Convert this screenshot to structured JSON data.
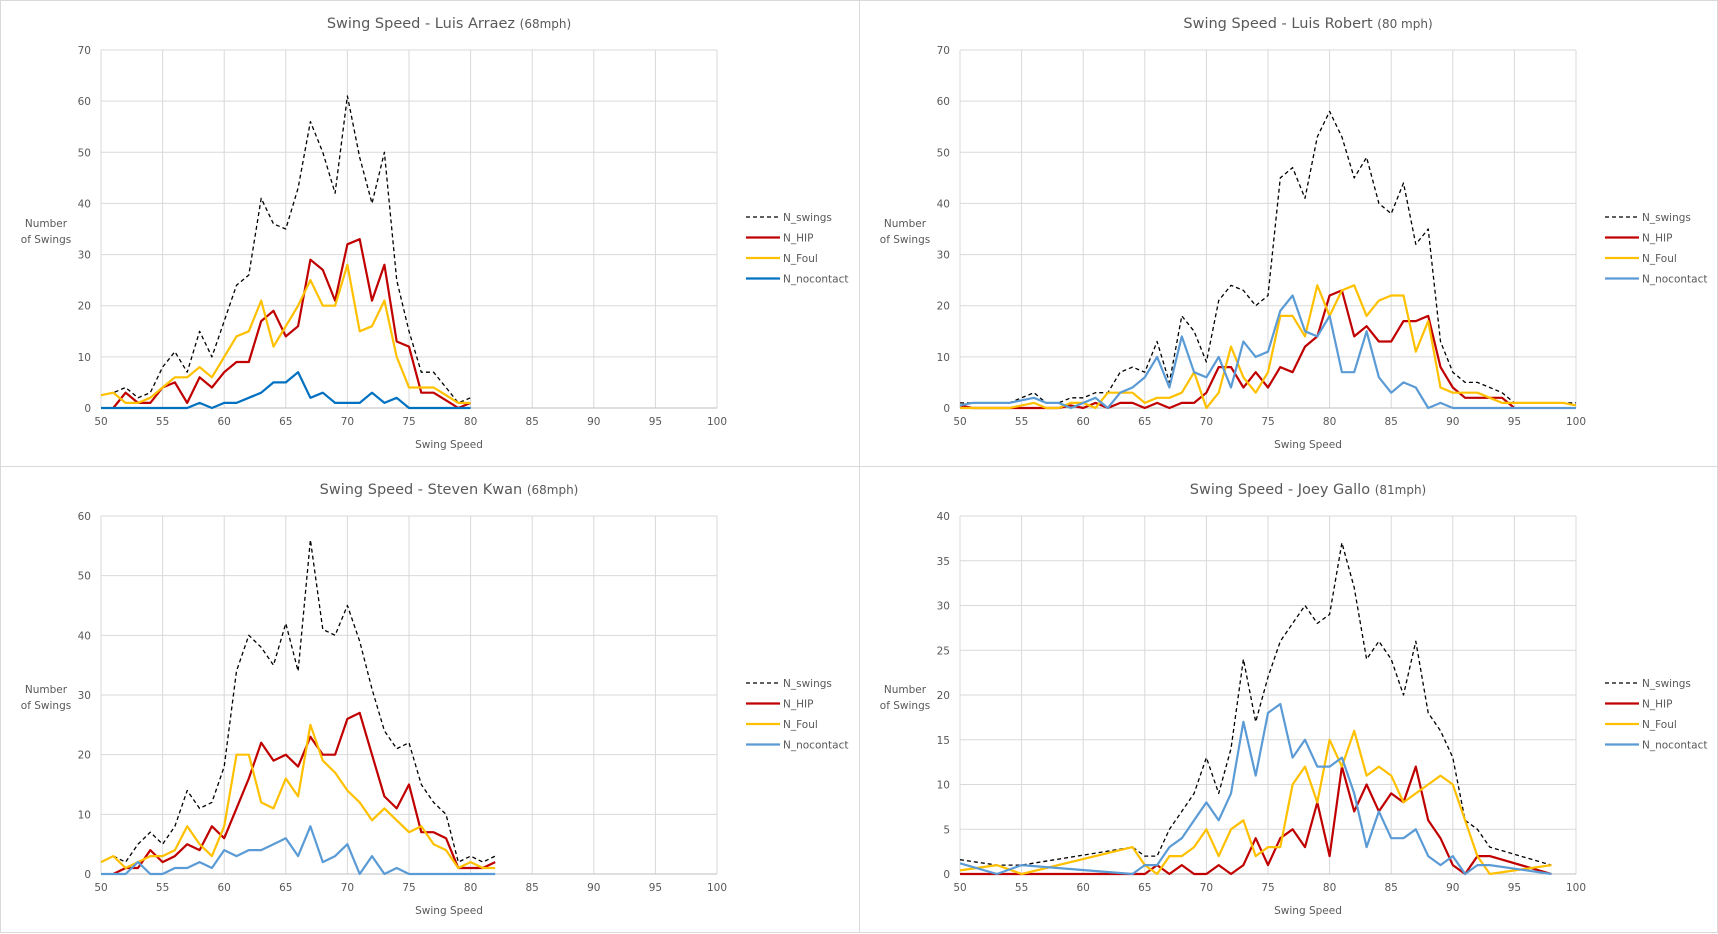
{
  "chart_data": [
    {
      "type": "line",
      "title": "Swing Speed - Luis Arraez",
      "title_suffix": "(68mph)",
      "xlabel": "Swing Speed",
      "ylabel": [
        "Number",
        "of Swings"
      ],
      "xlim": [
        50,
        100
      ],
      "ylim": [
        0,
        70
      ],
      "xticks": [
        50,
        55,
        60,
        65,
        70,
        75,
        80,
        85,
        90,
        95,
        100
      ],
      "yticks": [
        0,
        10,
        20,
        30,
        40,
        50,
        60,
        70
      ],
      "grid": true,
      "legend_position": "right",
      "x": [
        50,
        51,
        52,
        53,
        54,
        55,
        56,
        57,
        58,
        59,
        60,
        61,
        62,
        63,
        64,
        65,
        66,
        67,
        68,
        69,
        70,
        71,
        72,
        73,
        74,
        75,
        76,
        77,
        78,
        79,
        80
      ],
      "series": [
        {
          "name": "N_swings",
          "color": "#000000",
          "dashed": true,
          "values": [
            2.5,
            3,
            4,
            2,
            3,
            8,
            11,
            7,
            15,
            10,
            17,
            24,
            26,
            41,
            36,
            35,
            43,
            56,
            50,
            42,
            61,
            49,
            40,
            50,
            25,
            15,
            7,
            7,
            4,
            1,
            2
          ]
        },
        {
          "name": "N_HIP",
          "color": "#C00000",
          "dashed": false,
          "values": [
            null,
            0,
            3,
            1,
            1,
            4,
            5,
            1,
            6,
            4,
            7,
            9,
            9,
            17,
            19,
            14,
            16,
            29,
            27,
            21,
            32,
            33,
            21,
            28,
            13,
            12,
            3,
            3,
            1.5,
            0,
            1
          ]
        },
        {
          "name": "N_Foul",
          "color": "#FFC000",
          "dashed": false,
          "values": [
            2.5,
            3,
            1,
            1,
            2,
            4,
            6,
            6,
            8,
            6,
            10,
            14,
            15,
            21,
            12,
            16,
            20,
            25,
            20,
            20,
            28,
            15,
            16,
            21,
            10,
            4,
            4,
            4,
            2.5,
            1,
            1
          ]
        },
        {
          "name": "N_nocontact",
          "color": "#0070C0",
          "dashed": false,
          "values": [
            0,
            0,
            0,
            0,
            0,
            0,
            0,
            0,
            1,
            0,
            1,
            1,
            2,
            3,
            5,
            5,
            7,
            2,
            3,
            1,
            1,
            1,
            3,
            1,
            2,
            0,
            0,
            0,
            0,
            0,
            0
          ]
        }
      ]
    },
    {
      "type": "line",
      "title": "Swing Speed - Luis Robert",
      "title_suffix": "(80 mph)",
      "xlabel": "Swing Speed",
      "ylabel": [
        "Number",
        "of Swings"
      ],
      "xlim": [
        50,
        100
      ],
      "ylim": [
        0,
        70
      ],
      "xticks": [
        50,
        55,
        60,
        65,
        70,
        75,
        80,
        85,
        90,
        95,
        100
      ],
      "yticks": [
        0,
        10,
        20,
        30,
        40,
        50,
        60,
        70
      ],
      "grid": true,
      "legend_position": "right",
      "x": [
        50,
        51,
        52,
        53,
        54,
        55,
        56,
        57,
        58,
        59,
        60,
        61,
        62,
        63,
        64,
        65,
        66,
        67,
        68,
        69,
        70,
        71,
        72,
        73,
        74,
        75,
        76,
        77,
        78,
        79,
        80,
        81,
        82,
        83,
        84,
        85,
        86,
        87,
        88,
        89,
        90,
        91,
        92,
        93,
        94,
        95,
        96,
        97,
        98,
        99,
        100
      ],
      "series": [
        {
          "name": "N_swings",
          "color": "#000000",
          "dashed": true,
          "values": [
            1,
            1,
            1,
            1,
            1,
            2,
            3,
            1,
            1,
            2,
            2,
            3,
            3,
            7,
            8,
            7,
            13,
            5,
            18,
            15,
            9,
            21,
            24,
            23,
            20,
            22,
            45,
            47,
            41,
            53,
            58,
            53,
            45,
            49,
            40,
            38,
            44,
            32,
            35,
            13,
            7,
            5,
            5,
            4,
            3,
            1,
            1,
            1,
            1,
            1,
            1
          ]
        },
        {
          "name": "N_HIP",
          "color": "#C00000",
          "dashed": false,
          "values": [
            0.5,
            0,
            0,
            0,
            0,
            0,
            0,
            0,
            0,
            0.5,
            0,
            1,
            0,
            1,
            1,
            0,
            1,
            0,
            1,
            1,
            3,
            8,
            8,
            4,
            7,
            4,
            8,
            7,
            12,
            14,
            22,
            23,
            14,
            16,
            13,
            13,
            17,
            17,
            18,
            8,
            4,
            2,
            2,
            2,
            2,
            0,
            null,
            null,
            null,
            null,
            0.3
          ]
        },
        {
          "name": "N_Foul",
          "color": "#FFC000",
          "dashed": false,
          "values": [
            0,
            0,
            0,
            0,
            0,
            0.5,
            1,
            0,
            0,
            1,
            1,
            0,
            3,
            3,
            3,
            1,
            2,
            2,
            3,
            7,
            0,
            3,
            12,
            6,
            3,
            7,
            18,
            18,
            14,
            24,
            18,
            23,
            24,
            18,
            21,
            22,
            22,
            11,
            17,
            4,
            3,
            3,
            3,
            2,
            1,
            1,
            1,
            1,
            1,
            1,
            0.5
          ]
        },
        {
          "name": "N_nocontact",
          "color": "#5B9BD5",
          "dashed": false,
          "values": [
            0.5,
            1,
            1,
            1,
            1,
            1.5,
            2,
            1,
            1,
            0,
            1,
            2,
            0,
            3,
            4,
            6,
            10,
            4,
            14,
            7,
            6,
            10,
            4,
            13,
            10,
            11,
            19,
            22,
            15,
            14,
            18,
            7,
            7,
            15,
            6,
            3,
            5,
            4,
            0,
            1,
            0,
            0,
            0,
            0,
            0,
            0,
            0,
            0,
            0,
            0,
            0
          ]
        }
      ]
    },
    {
      "type": "line",
      "title": "Swing Speed - Steven Kwan",
      "title_suffix": "(68mph)",
      "xlabel": "Swing Speed",
      "ylabel": [
        "Number",
        "of Swings"
      ],
      "xlim": [
        50,
        100
      ],
      "ylim": [
        0,
        60
      ],
      "xticks": [
        50,
        55,
        60,
        65,
        70,
        75,
        80,
        85,
        90,
        95,
        100
      ],
      "yticks": [
        0,
        10,
        20,
        30,
        40,
        50,
        60
      ],
      "grid": true,
      "legend_position": "right",
      "x": [
        50,
        51,
        52,
        53,
        54,
        55,
        56,
        57,
        58,
        59,
        60,
        61,
        62,
        63,
        64,
        65,
        66,
        67,
        68,
        69,
        70,
        71,
        72,
        73,
        74,
        75,
        76,
        77,
        78,
        79,
        80,
        81,
        82
      ],
      "series": [
        {
          "name": "N_swings",
          "color": "#000000",
          "dashed": true,
          "values": [
            2,
            3,
            2,
            5,
            7,
            5,
            8,
            14,
            11,
            12,
            18,
            34,
            40,
            38,
            35,
            42,
            34,
            56,
            41,
            40,
            45,
            39,
            31,
            24,
            21,
            22,
            15,
            12,
            10,
            2,
            3,
            2,
            3
          ]
        },
        {
          "name": "N_HIP",
          "color": "#C00000",
          "dashed": false,
          "values": [
            null,
            0,
            1,
            1,
            4,
            2,
            3,
            5,
            4,
            8,
            6,
            11,
            16,
            22,
            19,
            20,
            18,
            23,
            20,
            20,
            26,
            27,
            20,
            13,
            11,
            15,
            7,
            7,
            6,
            1,
            1,
            1,
            2
          ]
        },
        {
          "name": "N_Foul",
          "color": "#FFC000",
          "dashed": false,
          "values": [
            2,
            3,
            1,
            2,
            3,
            3,
            4,
            8,
            5,
            3,
            8,
            20,
            20,
            12,
            11,
            16,
            13,
            25,
            19,
            17,
            14,
            12,
            9,
            11,
            9,
            7,
            8,
            5,
            4,
            1,
            2,
            1,
            1
          ]
        },
        {
          "name": "N_nocontact",
          "color": "#5B9BD5",
          "dashed": false,
          "values": [
            0,
            0,
            0,
            2,
            0,
            0,
            1,
            1,
            2,
            1,
            4,
            3,
            4,
            4,
            5,
            6,
            3,
            8,
            2,
            3,
            5,
            0,
            3,
            0,
            1,
            0,
            0,
            0,
            0,
            0,
            0,
            0,
            0
          ]
        }
      ]
    },
    {
      "type": "line",
      "title": "Swing Speed - Joey Gallo",
      "title_suffix": "(81mph)",
      "xlabel": "Swing Speed",
      "ylabel": [
        "Number",
        "of Swings"
      ],
      "xlim": [
        50,
        100
      ],
      "ylim": [
        0,
        40
      ],
      "xticks": [
        50,
        55,
        60,
        65,
        70,
        75,
        80,
        85,
        90,
        95,
        100
      ],
      "yticks": [
        0,
        5,
        10,
        15,
        20,
        25,
        30,
        35,
        40
      ],
      "grid": true,
      "legend_position": "right",
      "x": [
        50,
        53,
        55,
        64,
        65,
        66,
        67,
        68,
        69,
        70,
        71,
        72,
        73,
        74,
        75,
        76,
        77,
        78,
        79,
        80,
        81,
        82,
        83,
        84,
        85,
        86,
        87,
        88,
        89,
        90,
        91,
        92,
        93,
        98
      ],
      "series": [
        {
          "name": "N_swings",
          "color": "#000000",
          "dashed": true,
          "values": [
            1.6,
            1,
            1,
            3,
            2,
            2,
            5,
            7,
            9,
            13,
            9,
            14,
            24,
            17,
            22,
            26,
            28,
            30,
            28,
            29,
            37,
            32,
            24,
            26,
            24,
            20,
            26,
            18,
            16,
            13,
            6,
            5,
            3,
            1
          ]
        },
        {
          "name": "N_HIP",
          "color": "#C00000",
          "dashed": false,
          "values": [
            0,
            0,
            0,
            0,
            0,
            1,
            0,
            1,
            0,
            0,
            1,
            0,
            1,
            4,
            1,
            4,
            5,
            3,
            8,
            2,
            12,
            7,
            10,
            7,
            9,
            8,
            12,
            6,
            4,
            1,
            0,
            2,
            2,
            0
          ]
        },
        {
          "name": "N_Foul",
          "color": "#FFC000",
          "dashed": false,
          "values": [
            0.4,
            1,
            0,
            3,
            1,
            0,
            2,
            2,
            3,
            5,
            2,
            5,
            6,
            2,
            3,
            3,
            10,
            12,
            8,
            15,
            12,
            16,
            11,
            12,
            11,
            8,
            9,
            10,
            11,
            10,
            6,
            2,
            0,
            1
          ]
        },
        {
          "name": "N_nocontact",
          "color": "#5B9BD5",
          "dashed": false,
          "values": [
            1.2,
            0,
            1,
            0,
            1,
            1,
            3,
            4,
            6,
            8,
            6,
            9,
            17,
            11,
            18,
            19,
            13,
            15,
            12,
            12,
            13,
            9,
            3,
            7,
            4,
            4,
            5,
            2,
            1,
            2,
            0,
            1,
            1,
            0
          ]
        }
      ]
    }
  ]
}
